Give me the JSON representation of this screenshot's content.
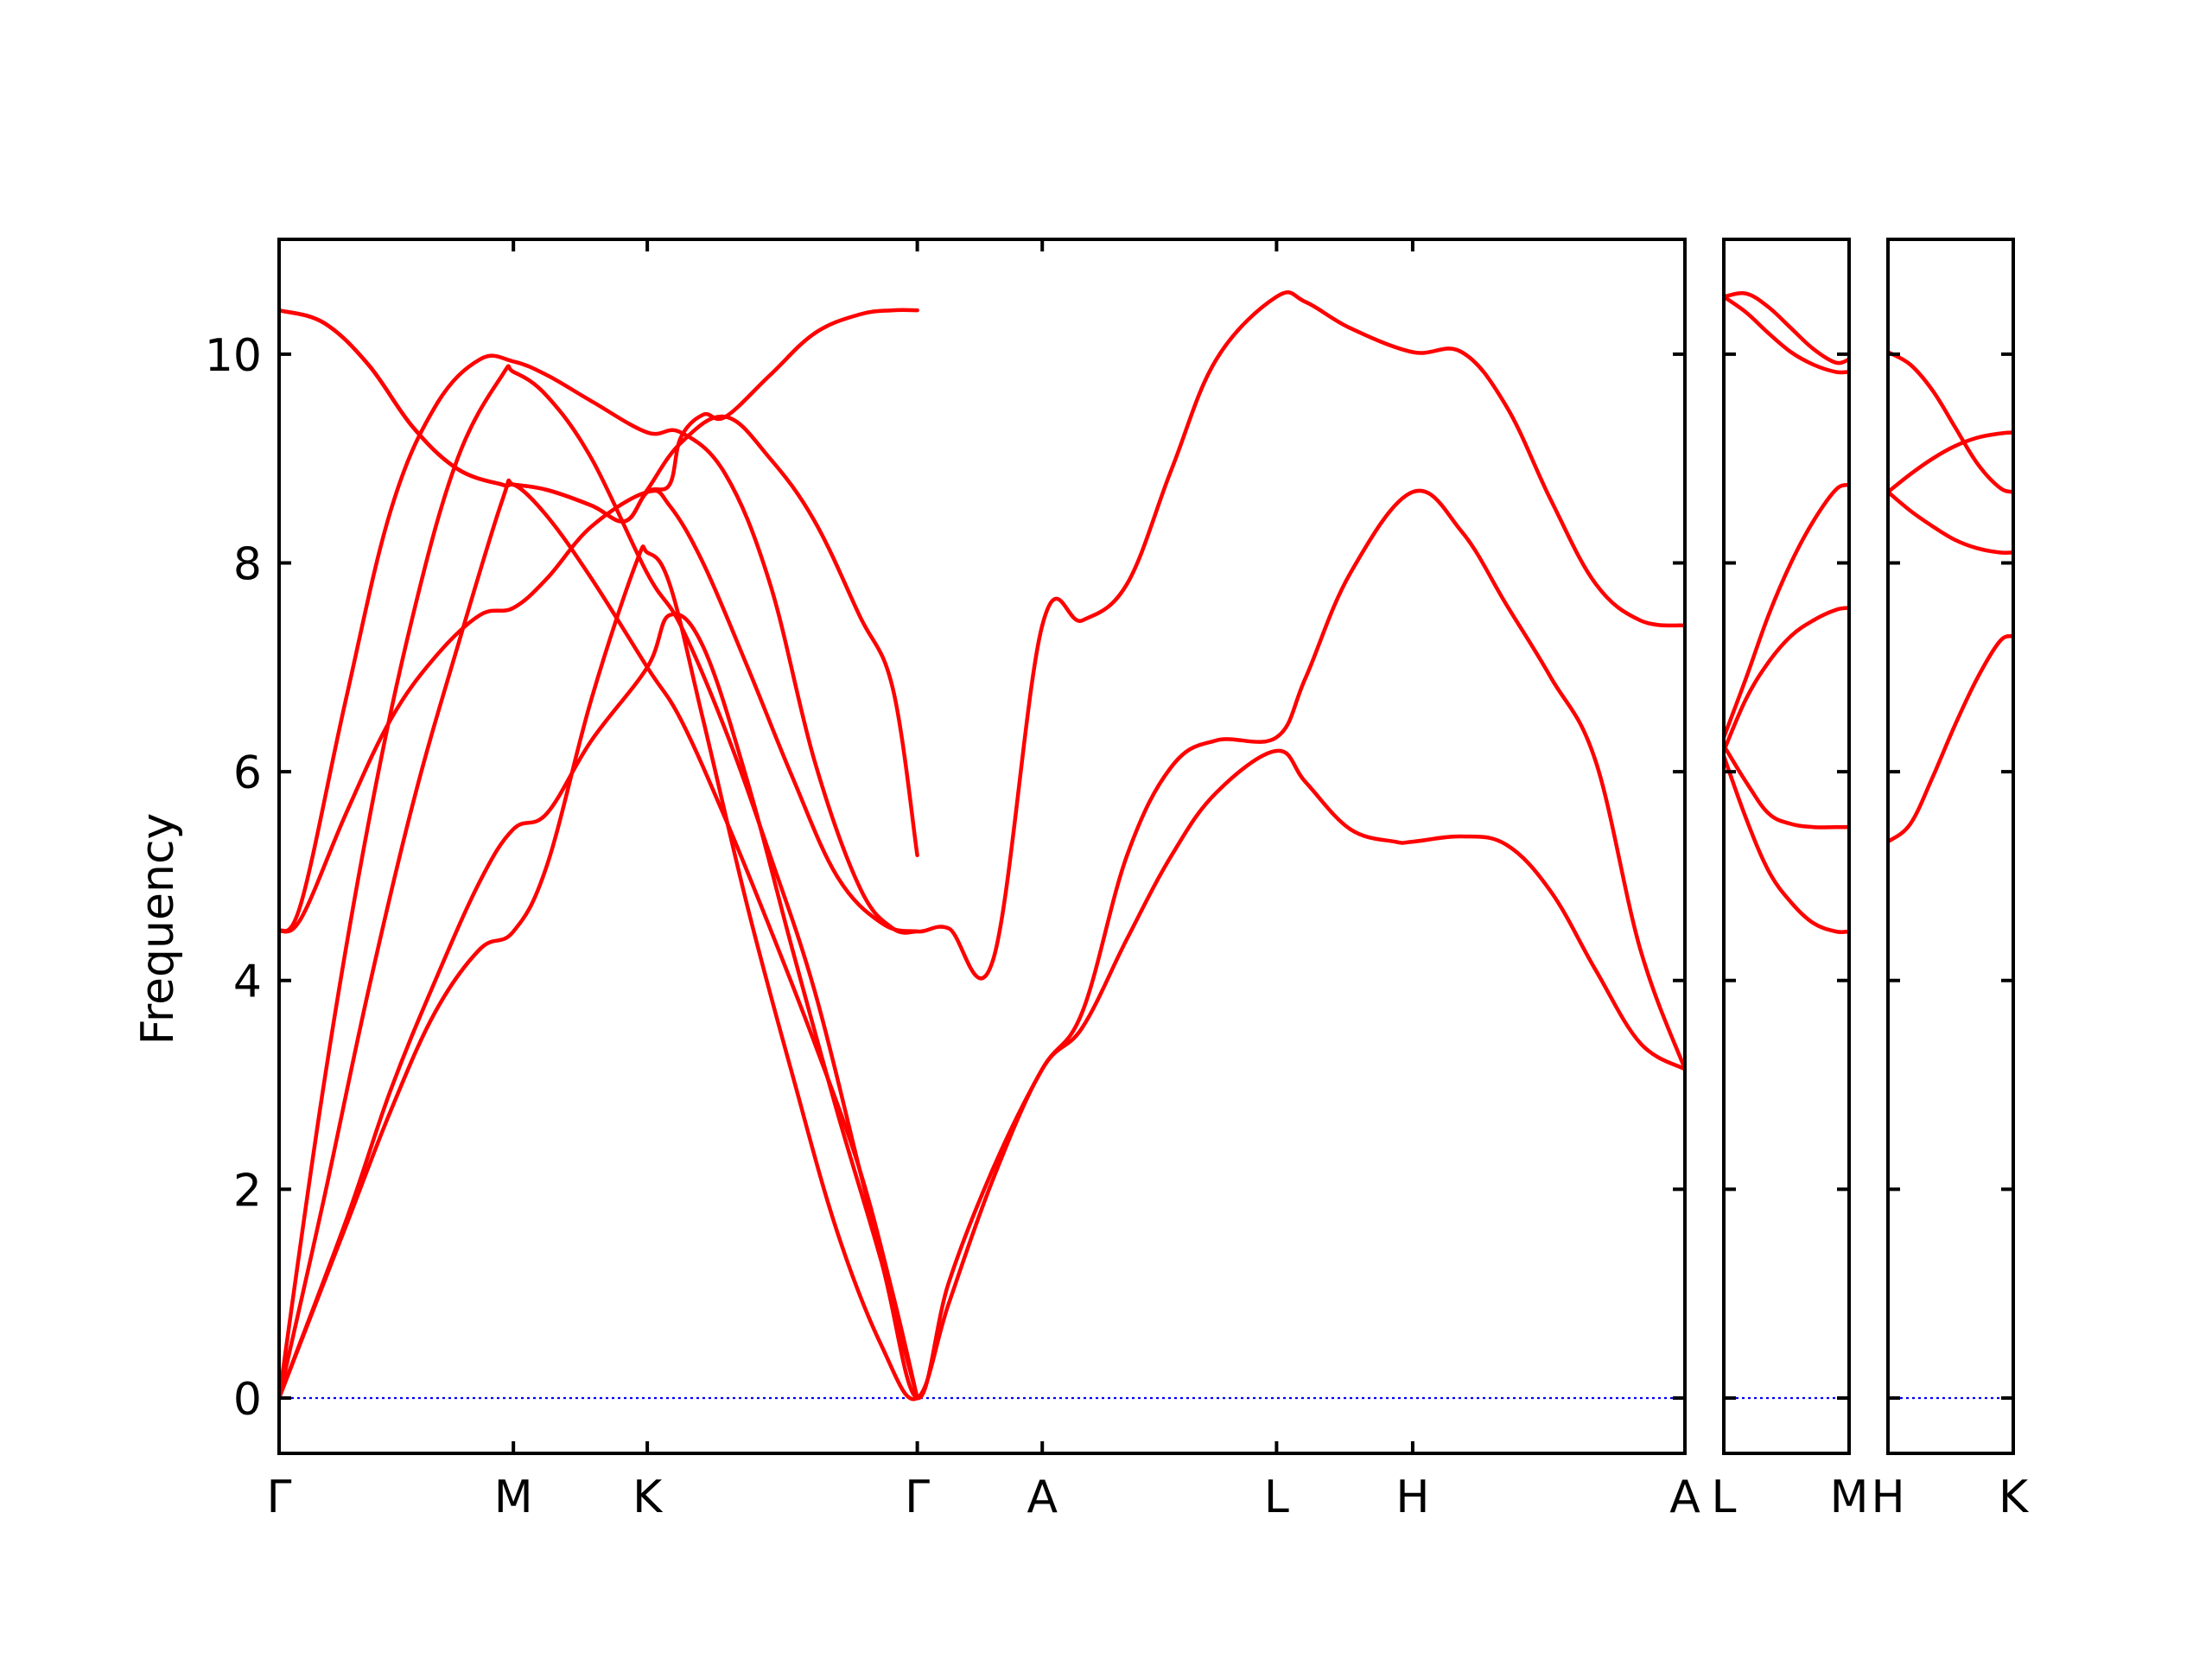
{
  "chart_data": {
    "type": "line",
    "title": "",
    "xlabel": "",
    "ylabel": "Frequency",
    "ylim": [
      -0.53,
      11.1
    ],
    "yticks": [
      0,
      2,
      4,
      6,
      8,
      10
    ],
    "ytick_labels": [
      "0",
      "2",
      "4",
      "6",
      "8",
      "10"
    ],
    "colors": {
      "bands": "#ff0000",
      "zero_line": "#0000ff",
      "frame": "#000000"
    },
    "panels": [
      {
        "name": "main",
        "x_range": [
          0,
          6.3
        ],
        "ticks": [
          {
            "x": 0.0,
            "label": "Γ"
          },
          {
            "x": 1.05,
            "label": "M"
          },
          {
            "x": 1.65,
            "label": "K"
          },
          {
            "x": 2.86,
            "label": "Γ"
          },
          {
            "x": 3.42,
            "label": "A"
          },
          {
            "x": 4.47,
            "label": "L"
          },
          {
            "x": 5.08,
            "label": "H"
          },
          {
            "x": 6.3,
            "label": "A"
          }
        ],
        "series": [
          {
            "x": [
              0,
              0.3,
              0.5,
              0.7,
              0.9,
              1.05,
              1.2,
              1.4,
              1.6,
              1.65,
              1.75,
              1.9,
              2.1,
              2.3,
              2.5,
              2.7,
              2.86,
              3.0,
              3.2,
              3.42,
              3.6,
              3.8,
              4.0,
              4.2,
              4.47,
              4.6,
              4.8,
              5.0,
              5.08,
              5.3,
              5.5,
              5.7,
              5.9,
              6.1,
              6.3
            ],
            "y": [
              0,
              1.65,
              2.75,
              3.7,
              4.3,
              4.47,
              5.1,
              6.7,
              8.0,
              8.1,
              7.8,
              6.5,
              4.7,
              3.1,
              1.6,
              0.5,
              0,
              0.9,
              2.1,
              3.15,
              3.55,
              4.4,
              5.2,
              5.8,
              6.2,
              5.9,
              5.45,
              5.33,
              5.33,
              5.38,
              5.3,
              4.85,
              4.1,
              3.4,
              3.15
            ]
          },
          {
            "x": [
              0,
              0.3,
              0.5,
              0.7,
              0.9,
              1.05,
              1.2,
              1.4,
              1.65,
              1.75,
              1.9,
              2.1,
              2.3,
              2.5,
              2.7,
              2.86,
              3.0,
              3.2,
              3.42,
              3.6,
              3.8,
              4.0,
              4.2,
              4.47,
              4.6,
              4.8,
              5.08,
              5.3,
              5.5,
              5.7,
              5.9,
              6.1,
              6.3
            ],
            "y": [
              0,
              1.7,
              2.95,
              4.0,
              4.95,
              5.45,
              5.6,
              6.3,
              7.0,
              7.5,
              7.2,
              5.9,
              4.3,
              2.75,
              1.3,
              0,
              1.1,
              2.2,
              3.15,
              3.7,
              5.2,
              6.05,
              6.3,
              6.33,
              6.9,
              7.9,
              8.68,
              8.3,
              7.6,
              6.9,
              6.1,
              4.3,
              3.15
            ]
          },
          {
            "x": [
              0,
              0.2,
              0.4,
              0.6,
              0.8,
              1.0,
              1.05,
              1.2,
              1.4,
              1.65,
              1.8,
              2.0,
              2.2,
              2.4,
              2.6,
              2.75,
              2.86
            ],
            "y": [
              0,
              3.0,
              5.5,
              7.5,
              9.0,
              9.8,
              9.83,
              9.6,
              9.0,
              7.9,
              7.4,
              6.4,
              5.2,
              3.9,
              2.2,
              0.9,
              0
            ]
          },
          {
            "x": [
              0,
              0.2,
              0.4,
              0.6,
              0.8,
              1.0,
              1.05,
              1.2,
              1.4,
              1.65,
              1.8,
              2.0,
              2.2,
              2.4,
              2.6,
              2.75,
              2.86
            ],
            "y": [
              0,
              1.9,
              3.9,
              5.7,
              7.2,
              8.6,
              8.75,
              8.45,
              7.85,
              7.0,
              6.5,
              5.55,
              4.5,
              3.4,
              2.2,
              1.0,
              0
            ]
          },
          {
            "x": [
              0,
              0.1,
              0.3,
              0.5,
              0.7,
              0.9,
              1.05,
              1.2,
              1.4,
              1.65,
              1.75,
              1.9,
              2.1,
              2.3,
              2.5,
              2.7,
              2.86,
              3.0,
              3.2,
              3.42,
              3.6,
              3.8,
              4.0,
              4.2,
              4.47,
              4.6,
              4.8,
              5.08,
              5.3,
              5.5,
              5.7,
              5.9,
              6.1,
              6.3
            ],
            "y": [
              4.47,
              4.6,
              5.6,
              6.5,
              7.1,
              7.5,
              7.57,
              7.85,
              8.35,
              8.68,
              8.55,
              8.0,
              7.0,
              5.95,
              5.0,
              4.55,
              4.47,
              4.5,
              4.2,
              7.4,
              7.45,
              7.8,
              8.9,
              9.95,
              10.55,
              10.5,
              10.25,
              10.02,
              10.02,
              9.5,
              8.6,
              7.8,
              7.45,
              7.4
            ]
          },
          {
            "x": [
              0,
              0.1,
              0.3,
              0.5,
              0.7,
              0.9,
              1.05,
              1.2,
              1.4,
              1.65,
              1.8,
              2.0,
              2.2,
              2.4,
              2.6,
              2.75,
              2.86
            ],
            "y": [
              4.47,
              4.75,
              6.7,
              8.5,
              9.5,
              9.95,
              9.93,
              9.8,
              9.55,
              9.25,
              9.25,
              8.85,
              7.8,
              6.1,
              4.9,
              4.5,
              4.47
            ]
          },
          {
            "x": [
              0,
              0.2,
              0.4,
              0.6,
              0.8,
              1.0,
              1.05,
              1.2,
              1.4,
              1.55,
              1.65,
              1.8,
              2.0,
              2.2,
              2.4,
              2.6,
              2.75,
              2.86
            ],
            "y": [
              10.42,
              10.3,
              9.9,
              9.3,
              8.9,
              8.75,
              8.75,
              8.7,
              8.55,
              8.4,
              8.7,
              9.15,
              9.4,
              9.0,
              8.4,
              7.5,
              6.8,
              5.2
            ]
          },
          {
            "x": [
              0,
              0.2,
              0.4,
              0.6,
              0.8,
              1.0,
              1.05,
              1.2,
              1.4,
              1.55,
              1.65,
              1.75,
              1.8,
              1.9,
              2.0,
              2.2,
              2.4,
              2.6,
              2.75,
              2.86
            ],
            "y": [
              10.42,
              10.3,
              9.9,
              9.3,
              8.9,
              8.75,
              8.75,
              8.7,
              8.55,
              8.4,
              8.68,
              8.75,
              9.2,
              9.42,
              9.4,
              9.8,
              10.2,
              10.38,
              10.42,
              10.42
            ]
          }
        ]
      },
      {
        "name": "L-M",
        "x_range": [
          0,
          0.56
        ],
        "ticks": [
          {
            "x": 0.0,
            "label": "L"
          },
          {
            "x": 0.56,
            "label": "M"
          }
        ],
        "series": [
          {
            "x": [
              0,
              0.1,
              0.2,
              0.3,
              0.4,
              0.5,
              0.56
            ],
            "y": [
              10.55,
              10.58,
              10.45,
              10.25,
              10.05,
              9.92,
              9.95
            ]
          },
          {
            "x": [
              0,
              0.1,
              0.2,
              0.3,
              0.4,
              0.5,
              0.56
            ],
            "y": [
              10.55,
              10.4,
              10.2,
              10.02,
              9.9,
              9.83,
              9.83
            ]
          },
          {
            "x": [
              0,
              0.1,
              0.2,
              0.3,
              0.4,
              0.5,
              0.56
            ],
            "y": [
              6.33,
              6.9,
              7.5,
              8.0,
              8.4,
              8.7,
              8.75
            ]
          },
          {
            "x": [
              0,
              0.1,
              0.2,
              0.3,
              0.4,
              0.5,
              0.56
            ],
            "y": [
              6.2,
              6.7,
              7.05,
              7.3,
              7.45,
              7.55,
              7.57
            ]
          },
          {
            "x": [
              0,
              0.1,
              0.2,
              0.3,
              0.4,
              0.5,
              0.56
            ],
            "y": [
              6.25,
              5.9,
              5.6,
              5.5,
              5.47,
              5.47,
              5.47
            ]
          },
          {
            "x": [
              0,
              0.1,
              0.2,
              0.3,
              0.4,
              0.5,
              0.56
            ],
            "y": [
              6.15,
              5.55,
              5.05,
              4.75,
              4.55,
              4.47,
              4.47
            ]
          }
        ]
      },
      {
        "name": "H-K",
        "x_range": [
          0,
          0.56
        ],
        "ticks": [
          {
            "x": 0.0,
            "label": "H"
          },
          {
            "x": 0.56,
            "label": "K"
          }
        ],
        "series": [
          {
            "x": [
              0,
              0.1,
              0.2,
              0.3,
              0.4,
              0.5,
              0.56
            ],
            "y": [
              10.02,
              9.9,
              9.65,
              9.3,
              8.95,
              8.72,
              8.68
            ]
          },
          {
            "x": [
              0,
              0.1,
              0.2,
              0.3,
              0.4,
              0.5,
              0.56
            ],
            "y": [
              8.68,
              8.85,
              9.0,
              9.12,
              9.2,
              9.24,
              9.25
            ]
          },
          {
            "x": [
              0,
              0.1,
              0.2,
              0.3,
              0.4,
              0.5,
              0.56
            ],
            "y": [
              8.68,
              8.5,
              8.35,
              8.22,
              8.14,
              8.1,
              8.1
            ]
          },
          {
            "x": [
              0,
              0.1,
              0.2,
              0.3,
              0.4,
              0.5,
              0.56
            ],
            "y": [
              5.33,
              5.5,
              5.95,
              6.45,
              6.9,
              7.25,
              7.3
            ]
          }
        ]
      }
    ]
  }
}
